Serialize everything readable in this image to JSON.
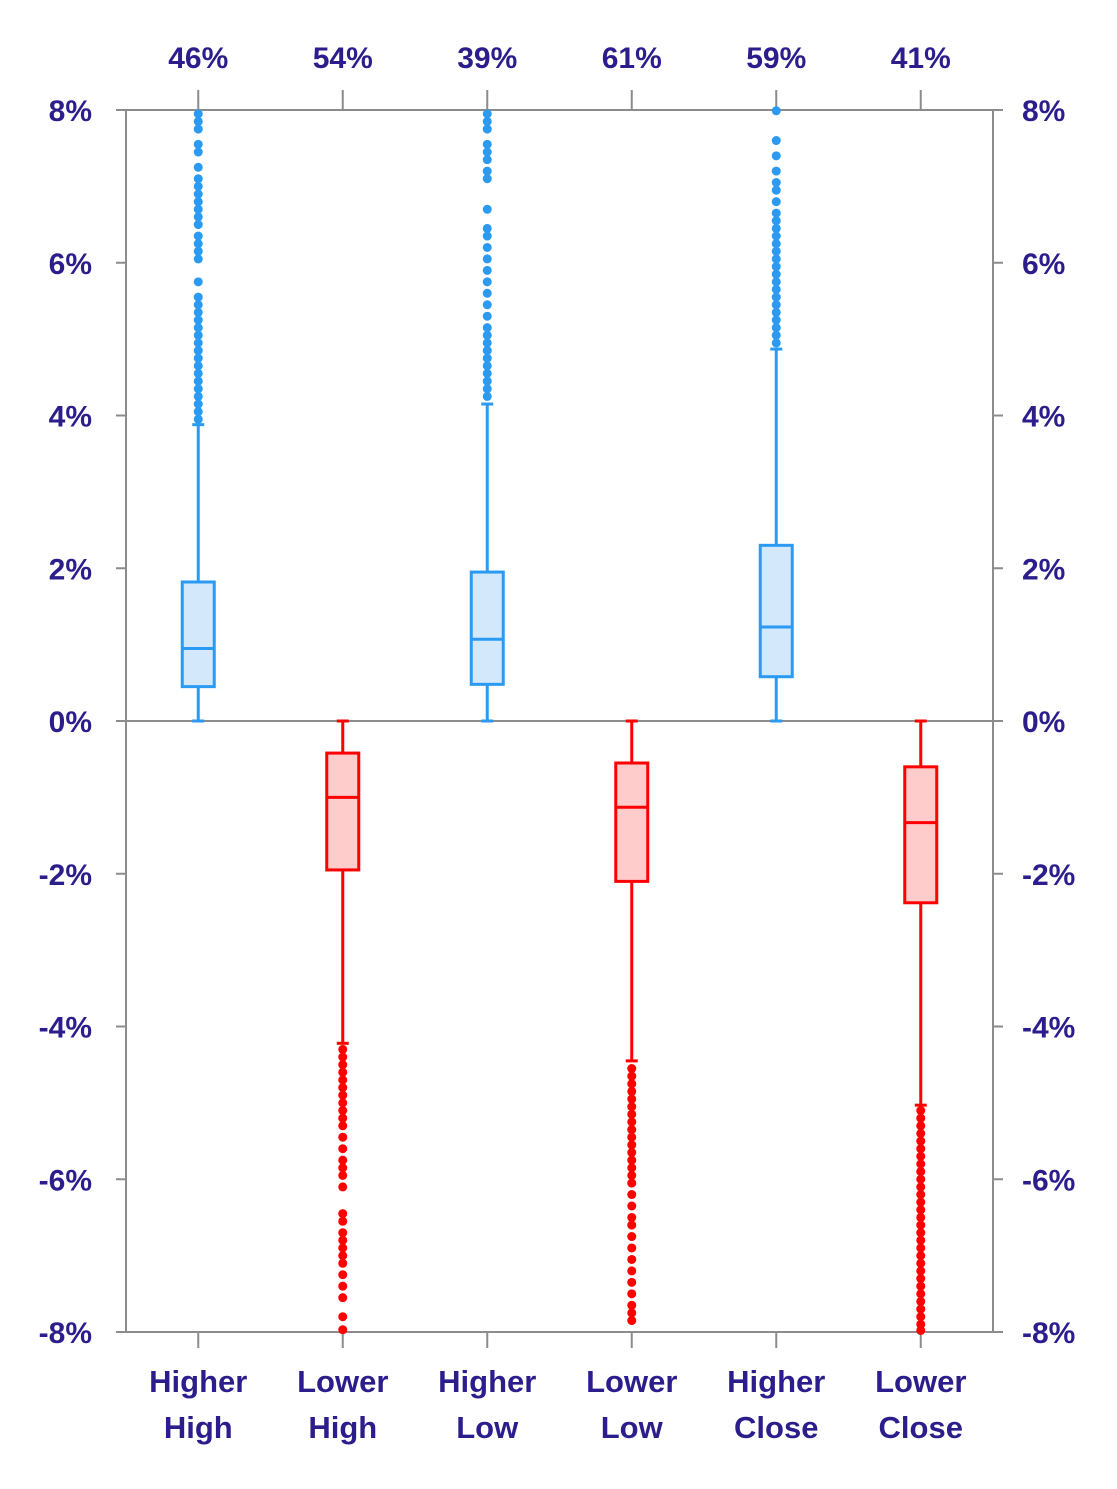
{
  "chart_data": {
    "type": "boxplot",
    "categories": [
      {
        "line1": "Higher",
        "line2": "High"
      },
      {
        "line1": "Lower",
        "line2": "High"
      },
      {
        "line1": "Higher",
        "line2": "Low"
      },
      {
        "line1": "Lower",
        "line2": "Low"
      },
      {
        "line1": "Higher",
        "line2": "Close"
      },
      {
        "line1": "Lower",
        "line2": "Close"
      }
    ],
    "top_labels": [
      "46%",
      "54%",
      "39%",
      "61%",
      "59%",
      "41%"
    ],
    "y_tick_labels": [
      "8%",
      "6%",
      "4%",
      "2%",
      "0%",
      "-2%",
      "-4%",
      "-6%",
      "-8%"
    ],
    "ylim": [
      -8,
      8
    ],
    "y_unit": "percent",
    "colors": {
      "up_stroke": "#2B9AF3",
      "up_fill": "#D3E8FB",
      "down_stroke": "#FF0000",
      "down_fill": "#FFCCCC",
      "label": "#2B1E8C",
      "axis": "#8C8C8C"
    },
    "boxes": [
      {
        "direction": "up",
        "whisker_low": 0.0,
        "q1": 0.45,
        "median": 0.95,
        "q3": 1.82,
        "whisker_high": 3.88,
        "outliers": [
          3.95,
          4.05,
          4.15,
          4.25,
          4.35,
          4.45,
          4.55,
          4.65,
          4.75,
          4.85,
          4.95,
          5.05,
          5.15,
          5.25,
          5.35,
          5.45,
          5.55,
          5.75,
          6.05,
          6.15,
          6.25,
          6.35,
          6.5,
          6.6,
          6.7,
          6.8,
          6.9,
          7.0,
          7.1,
          7.25,
          7.45,
          7.55,
          7.75,
          7.85,
          7.95
        ]
      },
      {
        "direction": "down",
        "whisker_low": -4.22,
        "q1": -1.95,
        "median": -1.0,
        "q3": -0.42,
        "whisker_high": 0.0,
        "outliers": [
          -4.3,
          -4.4,
          -4.5,
          -4.6,
          -4.7,
          -4.8,
          -4.9,
          -5.0,
          -5.1,
          -5.2,
          -5.3,
          -5.45,
          -5.6,
          -5.75,
          -5.85,
          -5.95,
          -6.1,
          -6.45,
          -6.55,
          -6.7,
          -6.8,
          -6.9,
          -7.0,
          -7.1,
          -7.25,
          -7.4,
          -7.55,
          -7.8,
          -7.97
        ]
      },
      {
        "direction": "up",
        "whisker_low": 0.0,
        "q1": 0.48,
        "median": 1.07,
        "q3": 1.95,
        "whisker_high": 4.15,
        "outliers": [
          4.25,
          4.35,
          4.45,
          4.55,
          4.65,
          4.75,
          4.85,
          4.95,
          5.05,
          5.15,
          5.3,
          5.45,
          5.6,
          5.75,
          5.9,
          6.05,
          6.2,
          6.35,
          6.45,
          6.7,
          7.1,
          7.2,
          7.35,
          7.45,
          7.55,
          7.75,
          7.85,
          7.95
        ]
      },
      {
        "direction": "down",
        "whisker_low": -4.45,
        "q1": -2.1,
        "median": -1.13,
        "q3": -0.55,
        "whisker_high": 0.0,
        "outliers": [
          -4.55,
          -4.65,
          -4.75,
          -4.85,
          -4.95,
          -5.05,
          -5.15,
          -5.25,
          -5.35,
          -5.45,
          -5.55,
          -5.65,
          -5.75,
          -5.85,
          -5.95,
          -6.05,
          -6.2,
          -6.35,
          -6.5,
          -6.6,
          -6.75,
          -6.9,
          -7.05,
          -7.2,
          -7.35,
          -7.5,
          -7.65,
          -7.75,
          -7.85
        ]
      },
      {
        "direction": "up",
        "whisker_low": 0.0,
        "q1": 0.58,
        "median": 1.23,
        "q3": 2.3,
        "whisker_high": 4.87,
        "outliers": [
          4.95,
          5.05,
          5.15,
          5.25,
          5.35,
          5.45,
          5.55,
          5.65,
          5.75,
          5.85,
          5.95,
          6.05,
          6.15,
          6.25,
          6.35,
          6.45,
          6.55,
          6.65,
          6.8,
          6.95,
          7.05,
          7.2,
          7.4,
          7.6,
          7.99
        ]
      },
      {
        "direction": "down",
        "whisker_low": -5.03,
        "q1": -2.38,
        "median": -1.33,
        "q3": -0.6,
        "whisker_high": 0.0,
        "outliers": [
          -5.1,
          -5.2,
          -5.3,
          -5.4,
          -5.5,
          -5.6,
          -5.7,
          -5.8,
          -5.9,
          -6.0,
          -6.1,
          -6.2,
          -6.3,
          -6.4,
          -6.5,
          -6.6,
          -6.7,
          -6.8,
          -6.9,
          -7.0,
          -7.1,
          -7.2,
          -7.3,
          -7.4,
          -7.5,
          -7.6,
          -7.7,
          -7.8,
          -7.9,
          -7.98
        ]
      }
    ]
  }
}
